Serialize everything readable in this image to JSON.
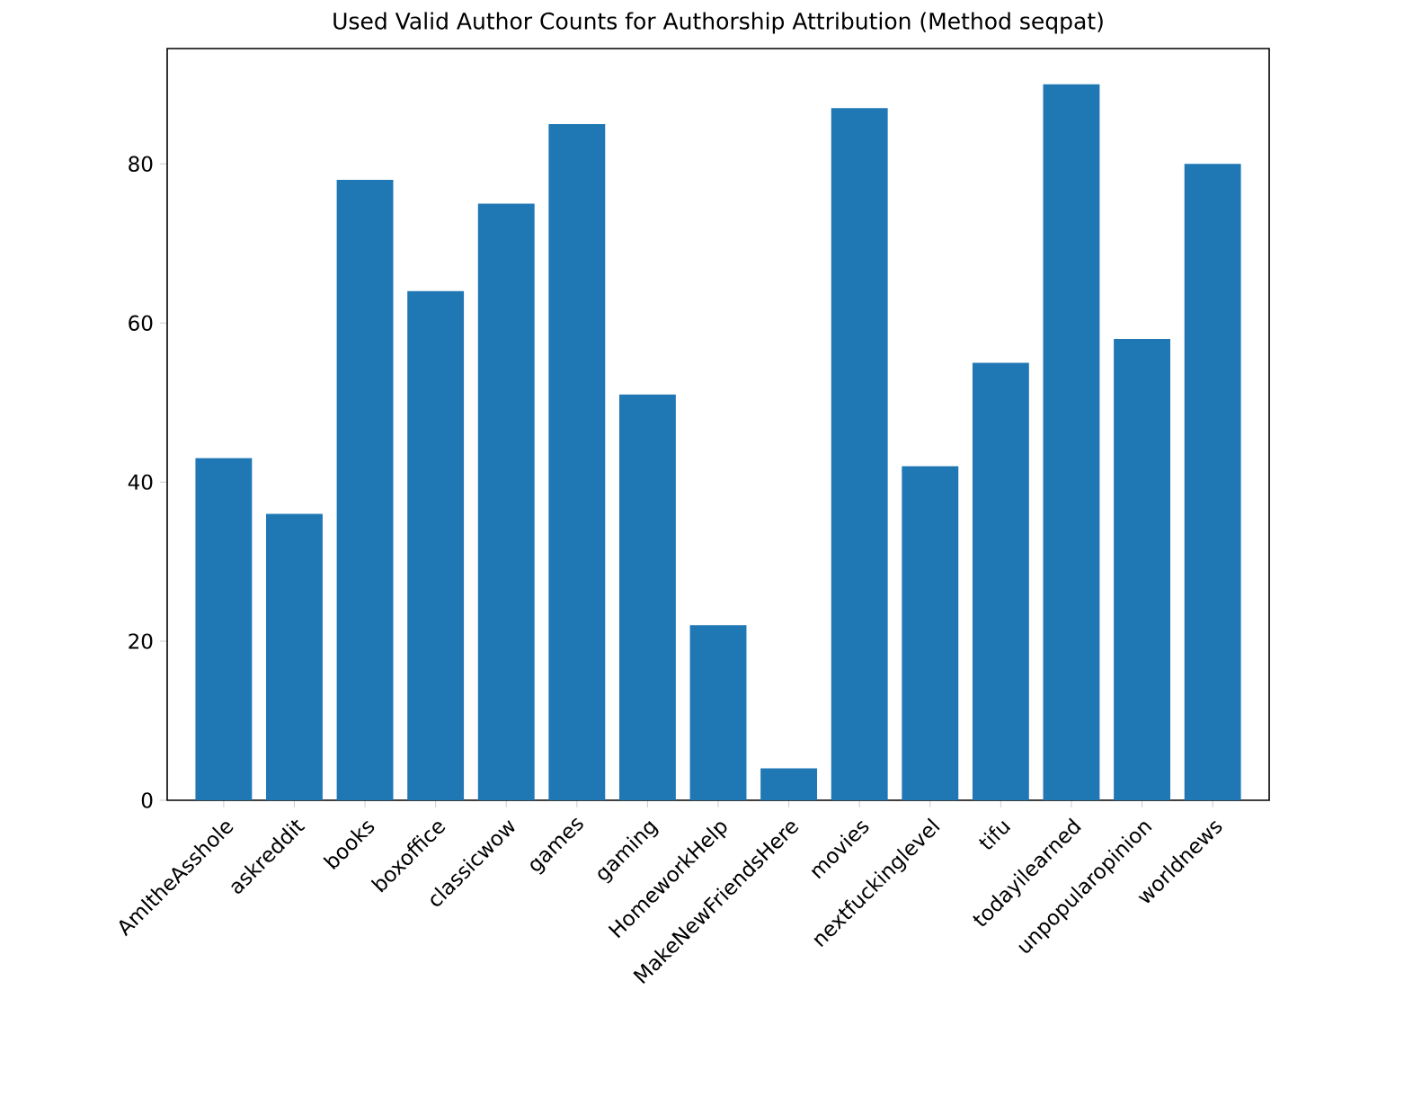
{
  "chart_data": {
    "type": "bar",
    "title": "Used Valid Author Counts for Authorship Attribution (Method seqpat)",
    "categories": [
      "AmItheAsshole",
      "askreddit",
      "books",
      "boxoffice",
      "classicwow",
      "games",
      "gaming",
      "HomeworkHelp",
      "MakeNewFriendsHere",
      "movies",
      "nextfuckinglevel",
      "tifu",
      "todayilearned",
      "unpopularopinion",
      "worldnews"
    ],
    "values": [
      43,
      36,
      78,
      64,
      75,
      85,
      51,
      22,
      4,
      87,
      42,
      55,
      90,
      58,
      80
    ],
    "color": "#1f77b4",
    "ylim": [
      0,
      94.5
    ],
    "yticks": [
      0,
      20,
      40,
      60,
      80
    ]
  }
}
